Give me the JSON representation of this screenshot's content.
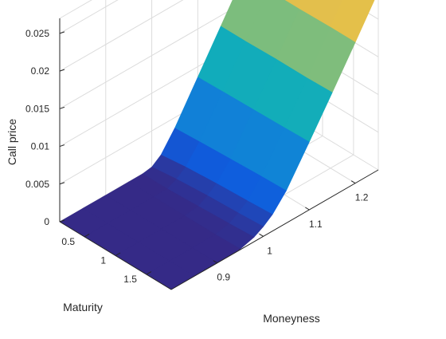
{
  "chart_data": {
    "type": "surface",
    "title": "",
    "xlabel": "Moneyness",
    "ylabel": "Maturity",
    "zlabel": "Call price",
    "xlim": [
      0.8,
      1.25
    ],
    "ylim": [
      0.1,
      1.9
    ],
    "zlim": [
      0,
      0.027
    ],
    "x_ticks": [
      "0.9",
      "1",
      "1.1",
      "1.2"
    ],
    "y_ticks": [
      "0.5",
      "1",
      "1.5"
    ],
    "z_ticks": [
      "0",
      "0.005",
      "0.01",
      "0.015",
      "0.02",
      "0.025"
    ],
    "grid": true,
    "colormap": "parula",
    "moneyness": [
      0.8,
      0.85,
      0.9,
      0.95,
      0.98,
      1.0,
      1.02,
      1.05,
      1.1,
      1.15,
      1.2,
      1.25
    ],
    "maturity": [
      0.1,
      0.5,
      1.0,
      1.5,
      1.9
    ],
    "call_price": [
      [
        0,
        0,
        0,
        0,
        0
      ],
      [
        0,
        0,
        0,
        0,
        0
      ],
      [
        0,
        0,
        0,
        0,
        0
      ],
      [
        0,
        0,
        0,
        0,
        0.0001
      ],
      [
        0,
        0,
        0.0002,
        0.0004,
        0.0006
      ],
      [
        0.0002,
        0.0006,
        0.0009,
        0.0011,
        0.0013
      ],
      [
        0.0011,
        0.0015,
        0.0018,
        0.002,
        0.0022
      ],
      [
        0.0036,
        0.0038,
        0.004,
        0.0042,
        0.0043
      ],
      [
        0.0086,
        0.0087,
        0.0088,
        0.0089,
        0.009
      ],
      [
        0.0136,
        0.0136,
        0.0137,
        0.0137,
        0.0138
      ],
      [
        0.0186,
        0.0186,
        0.0186,
        0.0187,
        0.0187
      ],
      [
        0.0236,
        0.0236,
        0.0236,
        0.0236,
        0.0237
      ]
    ]
  }
}
